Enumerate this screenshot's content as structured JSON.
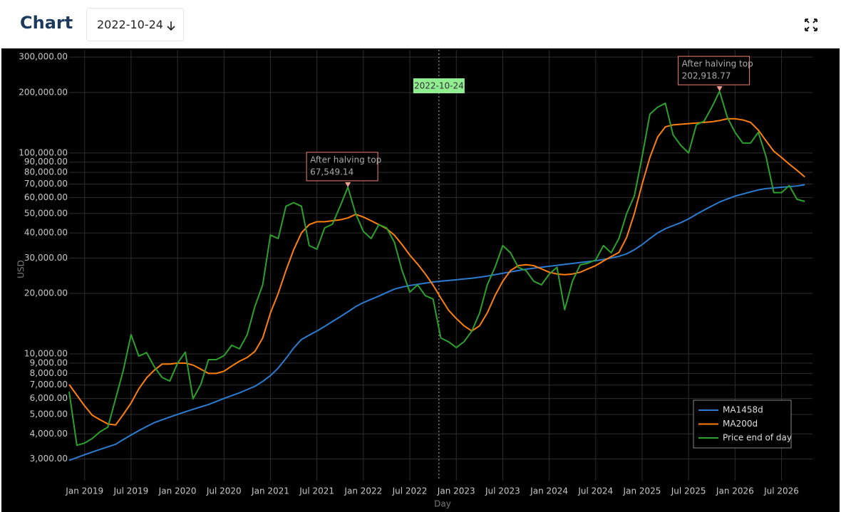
{
  "header": {
    "title": "Chart",
    "date_picker": "2022-10-24"
  },
  "chart_data": {
    "type": "line",
    "y_label": "USD",
    "x_label": "Day",
    "log_y": true,
    "grid": true,
    "legend": "lower right",
    "vline": "2022-10-24",
    "xlim": [
      "2018-11",
      "2026-11"
    ],
    "ylim": [
      2340,
      326000
    ],
    "xticks": [
      {
        "value": "2019-01",
        "label": "Jan 2019"
      },
      {
        "value": "2019-07",
        "label": "Jul 2019"
      },
      {
        "value": "2020-01",
        "label": "Jan 2020"
      },
      {
        "value": "2020-07",
        "label": "Jul 2020"
      },
      {
        "value": "2021-01",
        "label": "Jan 2021"
      },
      {
        "value": "2021-07",
        "label": "Jul 2021"
      },
      {
        "value": "2022-01",
        "label": "Jan 2022"
      },
      {
        "value": "2022-07",
        "label": "Jul 2022"
      },
      {
        "value": "2023-01",
        "label": "Jan 2023"
      },
      {
        "value": "2023-07",
        "label": "Jul 2023"
      },
      {
        "value": "2024-01",
        "label": "Jan 2024"
      },
      {
        "value": "2024-07",
        "label": "Jul 2024"
      },
      {
        "value": "2025-01",
        "label": "Jan 2025"
      },
      {
        "value": "2025-07",
        "label": "Jul 2025"
      },
      {
        "value": "2026-01",
        "label": "Jan 2026"
      },
      {
        "value": "2026-07",
        "label": "Jul 2026"
      }
    ],
    "yticks": [
      {
        "value": 3000,
        "label": "3,000.00"
      },
      {
        "value": 4000,
        "label": "4,000.00"
      },
      {
        "value": 5000,
        "label": "5,000.00"
      },
      {
        "value": 6000,
        "label": "6,000.00"
      },
      {
        "value": 7000,
        "label": "7,000.00"
      },
      {
        "value": 8000,
        "label": "8,000.00"
      },
      {
        "value": 9000,
        "label": "9,000.00"
      },
      {
        "value": 10000,
        "label": "10,000.00"
      },
      {
        "value": 20000,
        "label": "20,000.00"
      },
      {
        "value": 30000,
        "label": "30,000.00"
      },
      {
        "value": 40000,
        "label": "40,000.00"
      },
      {
        "value": 50000,
        "label": "50,000.00"
      },
      {
        "value": 60000,
        "label": "60,000.00"
      },
      {
        "value": 70000,
        "label": "70,000.00"
      },
      {
        "value": 80000,
        "label": "80,000.00"
      },
      {
        "value": 90000,
        "label": "90,000.00"
      },
      {
        "value": 100000,
        "label": "100,000.00"
      },
      {
        "value": 200000,
        "label": "200,000.00"
      },
      {
        "value": 300000,
        "label": "300,000.00"
      }
    ],
    "x": [
      "2018-11",
      "2018-12",
      "2019-01",
      "2019-02",
      "2019-03",
      "2019-04",
      "2019-05",
      "2019-06",
      "2019-07",
      "2019-08",
      "2019-09",
      "2019-10",
      "2019-11",
      "2019-12",
      "2020-01",
      "2020-02",
      "2020-03",
      "2020-04",
      "2020-05",
      "2020-06",
      "2020-07",
      "2020-08",
      "2020-09",
      "2020-10",
      "2020-11",
      "2020-12",
      "2021-01",
      "2021-02",
      "2021-03",
      "2021-04",
      "2021-05",
      "2021-06",
      "2021-07",
      "2021-08",
      "2021-09",
      "2021-10",
      "2021-11",
      "2021-12",
      "2022-01",
      "2022-02",
      "2022-03",
      "2022-04",
      "2022-05",
      "2022-06",
      "2022-07",
      "2022-08",
      "2022-09",
      "2022-10",
      "2022-11",
      "2022-12",
      "2023-01",
      "2023-02",
      "2023-03",
      "2023-04",
      "2023-05",
      "2023-06",
      "2023-07",
      "2023-08",
      "2023-09",
      "2023-10",
      "2023-11",
      "2023-12",
      "2024-01",
      "2024-02",
      "2024-03",
      "2024-04",
      "2024-05",
      "2024-06",
      "2024-07",
      "2024-08",
      "2024-09",
      "2024-10",
      "2024-11",
      "2024-12",
      "2025-01",
      "2025-02",
      "2025-03",
      "2025-04",
      "2025-05",
      "2025-06",
      "2025-07",
      "2025-08",
      "2025-09",
      "2025-10",
      "2025-11",
      "2025-12",
      "2026-01",
      "2026-02",
      "2026-03",
      "2026-04",
      "2026-05",
      "2026-06",
      "2026-07",
      "2026-08",
      "2026-09",
      "2026-10"
    ],
    "series": [
      {
        "name": "MA1458d",
        "color": "#2b7bd0",
        "values": [
          2950,
          3050,
          3150,
          3250,
          3350,
          3450,
          3550,
          3750,
          3950,
          4150,
          4350,
          4550,
          4700,
          4850,
          5000,
          5150,
          5300,
          5450,
          5600,
          5800,
          6000,
          6200,
          6400,
          6650,
          6900,
          7300,
          7800,
          8500,
          9500,
          10700,
          11800,
          12400,
          13000,
          13700,
          14500,
          15300,
          16200,
          17200,
          18000,
          18700,
          19400,
          20200,
          21000,
          21500,
          21900,
          22200,
          22500,
          22800,
          23000,
          23200,
          23400,
          23600,
          23800,
          24100,
          24400,
          24800,
          25200,
          25600,
          26000,
          26400,
          26700,
          27000,
          27300,
          27600,
          27900,
          28200,
          28500,
          28800,
          29100,
          29500,
          30000,
          30600,
          31500,
          33000,
          35000,
          37500,
          40000,
          42000,
          43500,
          45000,
          47000,
          49500,
          52000,
          54500,
          57000,
          59000,
          61000,
          62500,
          64000,
          65500,
          66500,
          67000,
          67500,
          68000,
          68500,
          69500
        ]
      },
      {
        "name": "MA200d",
        "color": "#ff7f0e",
        "values": [
          7040,
          6230,
          5510,
          4950,
          4700,
          4480,
          4430,
          5000,
          5700,
          6700,
          7600,
          8300,
          8900,
          8900,
          9000,
          9000,
          8800,
          8400,
          8000,
          8000,
          8200,
          8700,
          9200,
          9600,
          10300,
          12000,
          16000,
          20000,
          26000,
          33000,
          40000,
          44000,
          45500,
          45500,
          46000,
          46500,
          47500,
          49500,
          48000,
          46000,
          44000,
          42000,
          39000,
          35000,
          31000,
          28000,
          25000,
          22000,
          19000,
          16500,
          15000,
          13800,
          13000,
          13800,
          16000,
          19500,
          23000,
          26000,
          27500,
          27800,
          27500,
          26500,
          25500,
          25000,
          24800,
          25000,
          25500,
          26500,
          27500,
          29000,
          30500,
          32000,
          38000,
          50000,
          70000,
          95000,
          120000,
          135000,
          138000,
          139000,
          140000,
          141000,
          142000,
          143000,
          145000,
          148000,
          148000,
          146000,
          142000,
          130000,
          115000,
          102000,
          95000,
          88000,
          82000,
          76000
        ]
      },
      {
        "name": "Price end of day",
        "color": "#2ca02c",
        "values": [
          6490,
          3510,
          3600,
          3800,
          4100,
          4320,
          5980,
          8300,
          12470,
          9750,
          10150,
          8630,
          7640,
          7330,
          8990,
          10200,
          5980,
          7040,
          9370,
          9370,
          9800,
          11040,
          10600,
          12470,
          17270,
          22070,
          39060,
          37500,
          54300,
          56600,
          54300,
          34600,
          33200,
          42400,
          44200,
          54300,
          67549.14,
          49900,
          40700,
          37500,
          44000,
          42400,
          36000,
          26000,
          20300,
          22070,
          19500,
          18750,
          12000,
          11490,
          10760,
          11500,
          12980,
          15930,
          22070,
          26980,
          34600,
          31870,
          26980,
          26000,
          23000,
          22070,
          24940,
          26980,
          16600,
          23000,
          27740,
          28300,
          29360,
          34600,
          31870,
          37500,
          49960,
          61270,
          95960,
          156000,
          169000,
          176700,
          123000,
          109000,
          100000,
          138000,
          144000,
          169000,
          202918.77,
          150500,
          126700,
          112000,
          112000,
          126700,
          95960,
          63500,
          63500,
          68800,
          58800,
          57400
        ]
      }
    ],
    "annotations": [
      {
        "x": "2021-11",
        "y": 67549.14,
        "title": "After halving top",
        "label": "67,549.14"
      },
      {
        "x": "2025-11",
        "y": 202918.77,
        "title": "After halving top",
        "label": "202,918.77"
      }
    ]
  }
}
